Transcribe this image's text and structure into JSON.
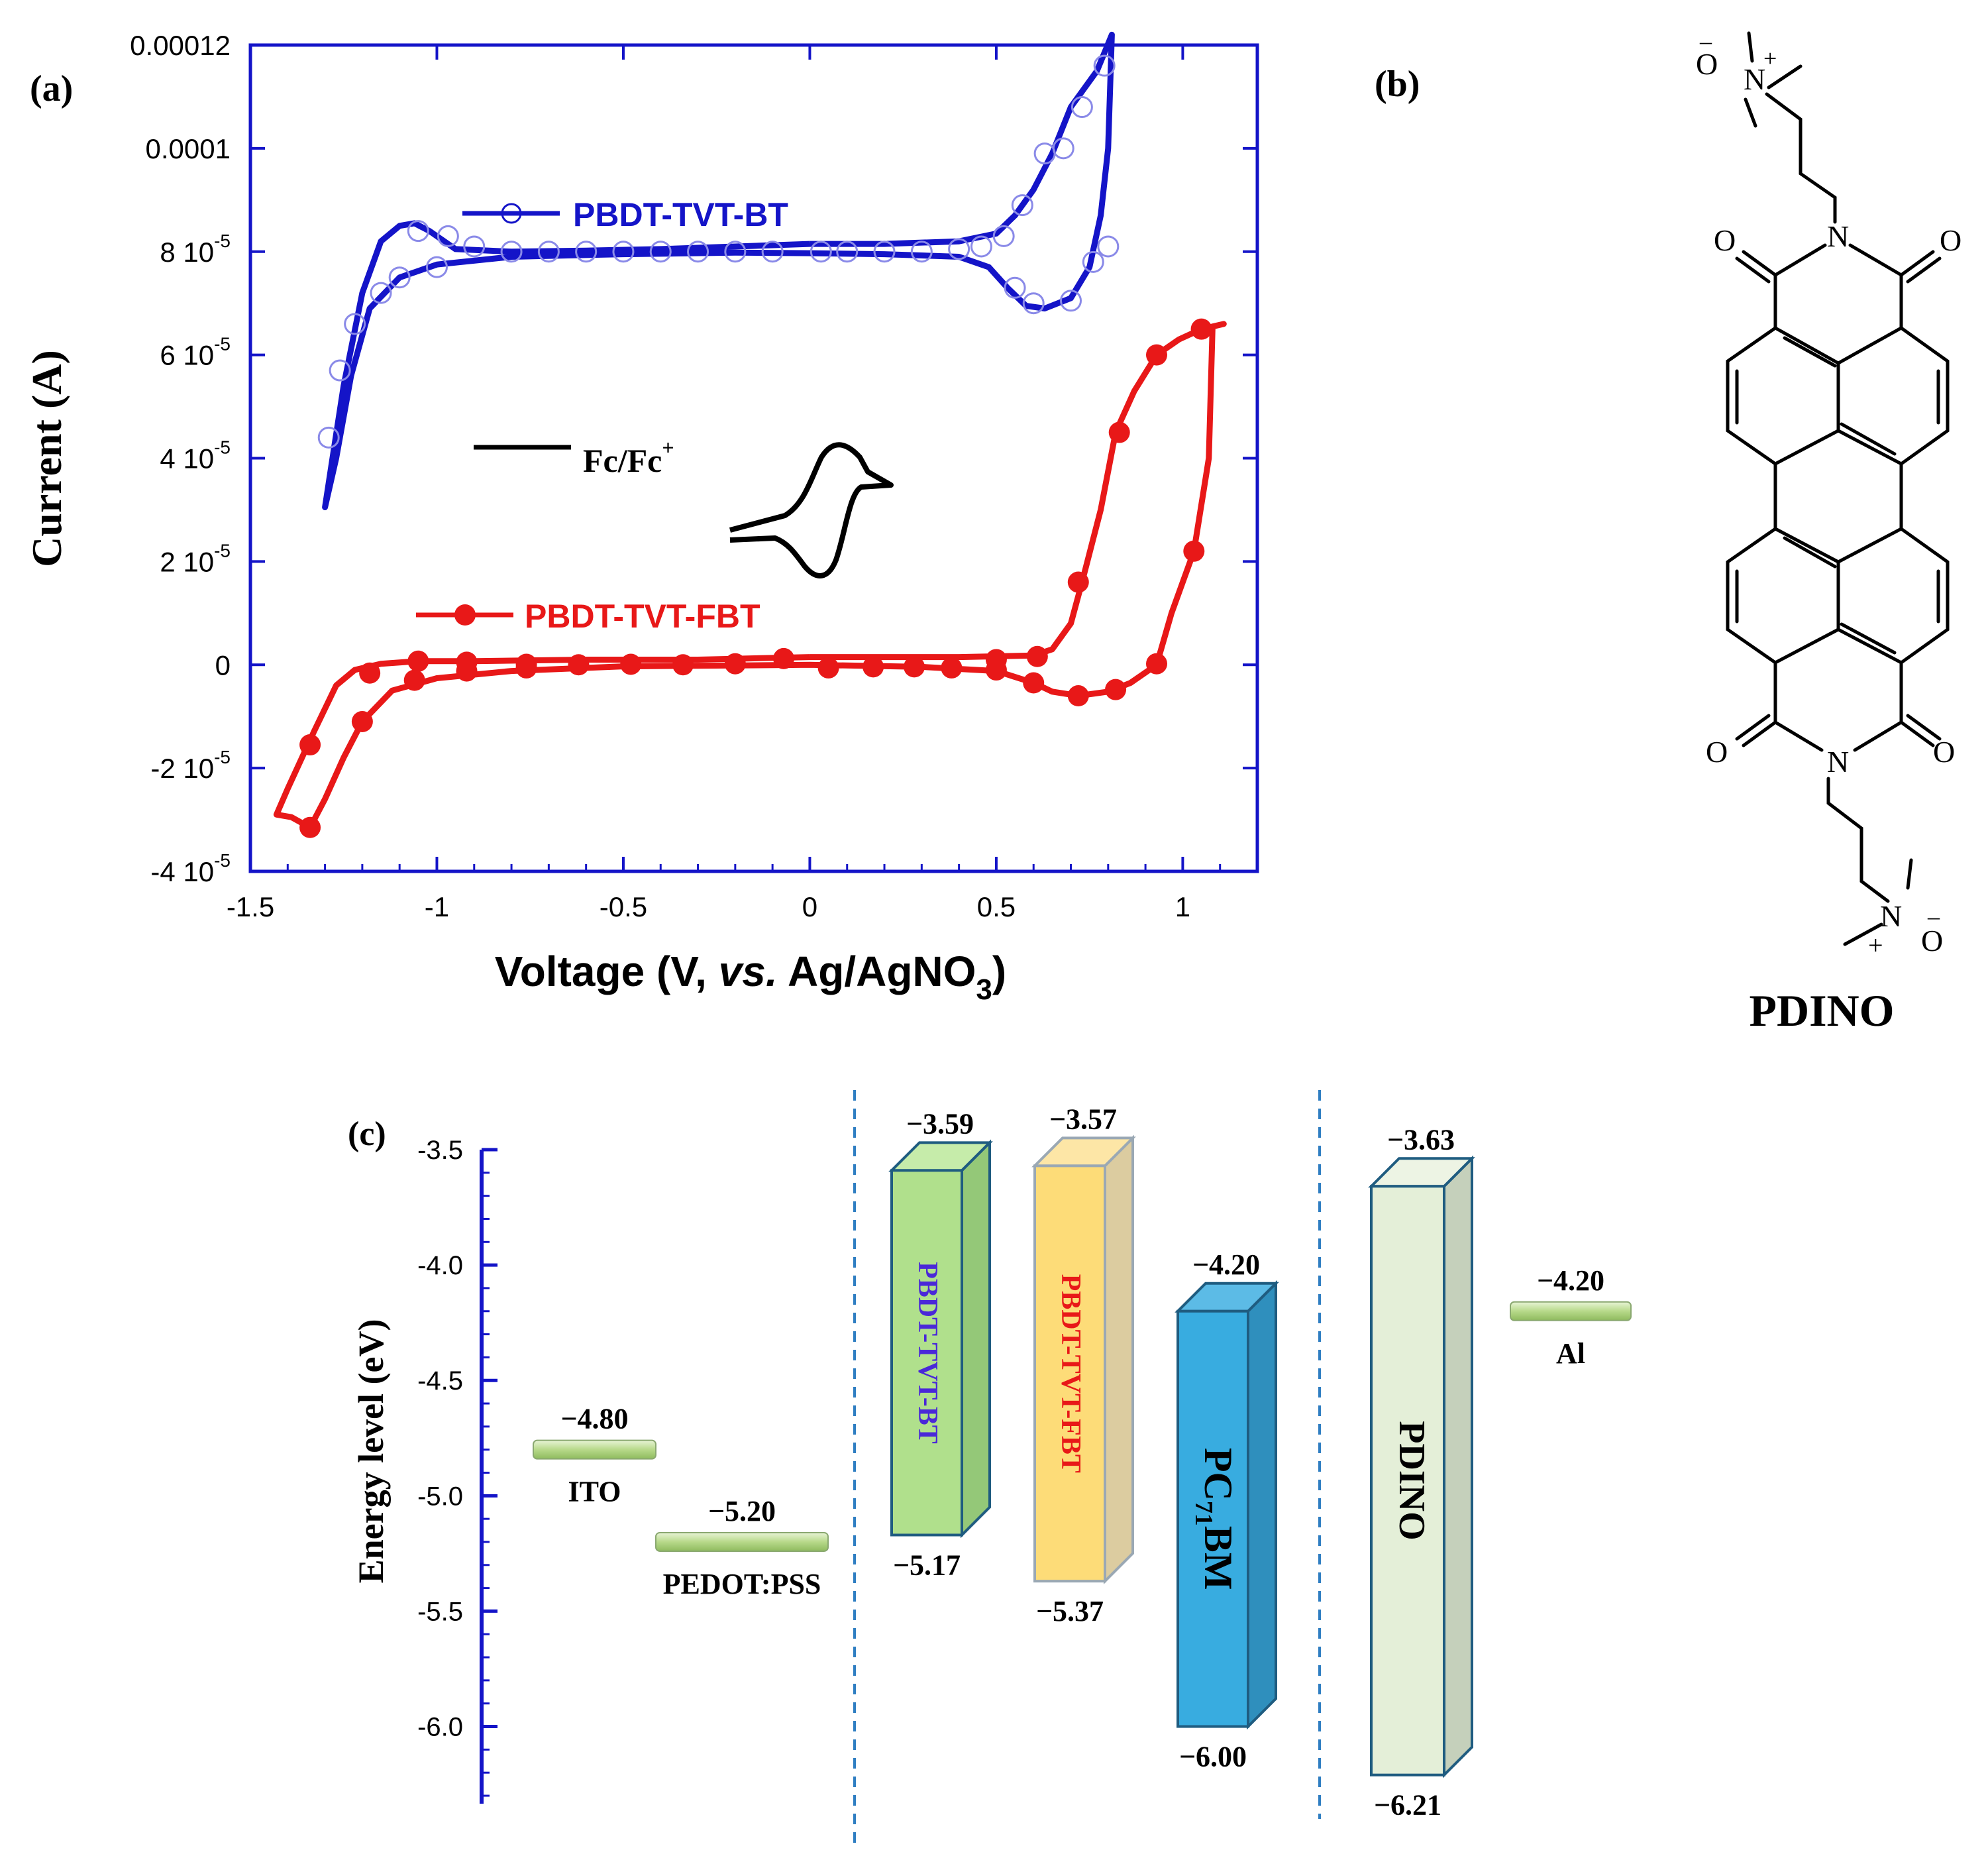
{
  "panel_labels": [
    "(a)",
    "(b)",
    "(c)"
  ],
  "chart_data": [
    {
      "type": "line",
      "xlabel_main": "Voltage (V, ",
      "xlabel_italic": "vs.",
      "xlabel_tail": " Ag/AgNO",
      "xlabel_sub": "3",
      "xlabel_close": ")",
      "ylabel": "Current (A)",
      "xlim": [
        -1.5,
        1.2
      ],
      "ylim": [
        -4e-05,
        0.00012
      ],
      "xticks": [
        {
          "v": -1.5,
          "label": "-1.5"
        },
        {
          "v": -1,
          "label": "-1"
        },
        {
          "v": -0.5,
          "label": "-0.5"
        },
        {
          "v": 0,
          "label": "0"
        },
        {
          "v": 0.5,
          "label": "0.5"
        },
        {
          "v": 1,
          "label": "1"
        }
      ],
      "yticks": [
        {
          "v": 0.00012,
          "label": "0.00012"
        },
        {
          "v": 0.0001,
          "label": "0.0001"
        },
        {
          "v": 8e-05,
          "label": "8 10",
          "exp": "-5"
        },
        {
          "v": 6e-05,
          "label": "6 10",
          "exp": "-5"
        },
        {
          "v": 4e-05,
          "label": "4 10",
          "exp": "-5"
        },
        {
          "v": 2e-05,
          "label": "2 10",
          "exp": "-5"
        },
        {
          "v": 0,
          "label": "0"
        },
        {
          "v": -2e-05,
          "label": "-2 10",
          "exp": "-5"
        },
        {
          "v": -4e-05,
          "label": "-4 10",
          "exp": "-5"
        }
      ],
      "series": [
        {
          "name": "PBDT-TVT-BT",
          "color": "#1414c8",
          "marker": "open-circle",
          "loop_upper": [
            [
              0.0,
              8.15e-05
            ],
            [
              -0.2,
              8.1e-05
            ],
            [
              -0.4,
              8.05e-05
            ],
            [
              -0.6,
              8.02e-05
            ],
            [
              -0.8,
              8e-05
            ],
            [
              -0.95,
              8.05e-05
            ],
            [
              -1.02,
              8.4e-05
            ],
            [
              -1.06,
              8.55e-05
            ],
            [
              -1.1,
              8.5e-05
            ],
            [
              -1.15,
              8.2e-05
            ],
            [
              -1.2,
              7.2e-05
            ],
            [
              -1.25,
              5.4e-05
            ],
            [
              -1.28,
              4e-05
            ],
            [
              -1.3,
              3.05e-05
            ]
          ],
          "loop_lower": [
            [
              -1.3,
              3.05e-05
            ],
            [
              -1.27,
              4e-05
            ],
            [
              -1.23,
              5.6e-05
            ],
            [
              -1.18,
              6.9e-05
            ],
            [
              -1.1,
              7.5e-05
            ],
            [
              -1.0,
              7.75e-05
            ],
            [
              -0.8,
              7.9e-05
            ],
            [
              -0.5,
              7.95e-05
            ],
            [
              -0.2,
              7.98e-05
            ],
            [
              0.0,
              7.97e-05
            ],
            [
              0.2,
              7.95e-05
            ],
            [
              0.4,
              7.9e-05
            ],
            [
              0.48,
              7.7e-05
            ],
            [
              0.53,
              7.3e-05
            ],
            [
              0.58,
              6.95e-05
            ],
            [
              0.63,
              6.9e-05
            ],
            [
              0.7,
              7.1e-05
            ],
            [
              0.75,
              7.7e-05
            ],
            [
              0.78,
              8.7e-05
            ],
            [
              0.8,
              0.0001
            ],
            [
              0.81,
              0.000122
            ]
          ],
          "loop_return": [
            [
              0.81,
              0.000122
            ],
            [
              0.77,
              0.000115
            ],
            [
              0.7,
              0.000108
            ],
            [
              0.65,
              9.9e-05
            ],
            [
              0.6,
              9.2e-05
            ],
            [
              0.55,
              8.7e-05
            ],
            [
              0.5,
              8.35e-05
            ],
            [
              0.4,
              8.2e-05
            ],
            [
              0.2,
              8.15e-05
            ],
            [
              0.0,
              8.15e-05
            ]
          ],
          "markers": [
            [
              -1.05,
              8.4e-05
            ],
            [
              -0.97,
              8.3e-05
            ],
            [
              -0.9,
              8.1e-05
            ],
            [
              -0.8,
              8e-05
            ],
            [
              -0.7,
              8e-05
            ],
            [
              -0.6,
              8e-05
            ],
            [
              -0.5,
              8e-05
            ],
            [
              -0.4,
              8e-05
            ],
            [
              -0.3,
              8e-05
            ],
            [
              -0.2,
              8e-05
            ],
            [
              -0.1,
              8e-05
            ],
            [
              0.03,
              8e-05
            ],
            [
              0.1,
              8e-05
            ],
            [
              0.2,
              8e-05
            ],
            [
              0.3,
              8e-05
            ],
            [
              0.4,
              8.05e-05
            ],
            [
              0.46,
              8.1e-05
            ],
            [
              0.52,
              8.3e-05
            ],
            [
              0.57,
              8.9e-05
            ],
            [
              0.63,
              9.9e-05
            ],
            [
              0.68,
              0.0001
            ],
            [
              0.73,
              0.000108
            ],
            [
              0.79,
              0.000116
            ],
            [
              -1.26,
              5.7e-05
            ],
            [
              -1.29,
              4.4e-05
            ],
            [
              -1.22,
              6.6e-05
            ],
            [
              -1.15,
              7.2e-05
            ],
            [
              -1.1,
              7.5e-05
            ],
            [
              -1.0,
              7.7e-05
            ],
            [
              0.55,
              7.3e-05
            ],
            [
              0.6,
              7e-05
            ],
            [
              0.7,
              7.05e-05
            ],
            [
              0.76,
              7.8e-05
            ],
            [
              0.8,
              8.1e-05
            ]
          ]
        },
        {
          "name": "PBDT-TVT-FBT",
          "color": "#e81818",
          "marker": "filled-circle",
          "loop_upper": [
            [
              0.0,
              1.5e-06
            ],
            [
              -0.3,
              1e-06
            ],
            [
              -0.6,
              1e-06
            ],
            [
              -0.9,
              7e-07
            ],
            [
              -1.05,
              7e-07
            ],
            [
              -1.15,
              2e-07
            ],
            [
              -1.22,
              -1e-06
            ],
            [
              -1.27,
              -4e-06
            ],
            [
              -1.33,
              -1.3e-05
            ],
            [
              -1.4,
              -2.4e-05
            ],
            [
              -1.43,
              -2.9e-05
            ],
            [
              -1.39,
              -2.95e-05
            ],
            [
              -1.34,
              -3.15e-05
            ]
          ],
          "loop_lower": [
            [
              -1.34,
              -3.15e-05
            ],
            [
              -1.3,
              -2.6e-05
            ],
            [
              -1.25,
              -1.8e-05
            ],
            [
              -1.2,
              -1.1e-05
            ],
            [
              -1.12,
              -5e-06
            ],
            [
              -1.0,
              -2.6e-06
            ],
            [
              -0.8,
              -1.2e-06
            ],
            [
              -0.5,
              -3e-07
            ],
            [
              0.0,
              0.0
            ],
            [
              0.3,
              -4e-07
            ],
            [
              0.5,
              -1.2e-06
            ],
            [
              0.6,
              -3.5e-06
            ],
            [
              0.65,
              -5.2e-06
            ],
            [
              0.72,
              -6e-06
            ],
            [
              0.8,
              -5.2e-06
            ],
            [
              0.86,
              -3.5e-06
            ],
            [
              0.93,
              0.0
            ],
            [
              0.97,
              1e-05
            ],
            [
              1.03,
              2.2e-05
            ],
            [
              1.07,
              4e-05
            ],
            [
              1.08,
              6.55e-05
            ],
            [
              1.11,
              6.6e-05
            ]
          ],
          "loop_return": [
            [
              1.11,
              6.6e-05
            ],
            [
              1.05,
              6.5e-05
            ],
            [
              0.99,
              6.3e-05
            ],
            [
              0.93,
              6e-05
            ],
            [
              0.87,
              5.3e-05
            ],
            [
              0.82,
              4.5e-05
            ],
            [
              0.78,
              3e-05
            ],
            [
              0.73,
              1.6e-05
            ],
            [
              0.7,
              8e-06
            ],
            [
              0.65,
              3e-06
            ],
            [
              0.6,
              1.8e-06
            ],
            [
              0.4,
              1.5e-06
            ],
            [
              0.2,
              1.5e-06
            ],
            [
              0.0,
              1.5e-06
            ]
          ],
          "markers": [
            [
              -1.34,
              -1.55e-05
            ],
            [
              -1.34,
              -3.15e-05
            ],
            [
              -1.2,
              -1.1e-05
            ],
            [
              -1.18,
              -1.6e-06
            ],
            [
              -1.06,
              -3e-06
            ],
            [
              -1.05,
              7e-07
            ],
            [
              -0.92,
              -1.2e-06
            ],
            [
              -0.92,
              5e-07
            ],
            [
              -0.76,
              -6e-07
            ],
            [
              -0.76,
              1e-07
            ],
            [
              -0.62,
              0.0
            ],
            [
              -0.48,
              1e-07
            ],
            [
              -0.34,
              0.0
            ],
            [
              -0.2,
              2e-07
            ],
            [
              -0.07,
              1.2e-06
            ],
            [
              0.05,
              -6e-07
            ],
            [
              0.17,
              -4e-07
            ],
            [
              0.28,
              -4e-07
            ],
            [
              0.38,
              -6e-07
            ],
            [
              0.5,
              -1e-06
            ],
            [
              0.5,
              1e-06
            ],
            [
              0.6,
              -3.5e-06
            ],
            [
              0.61,
              1.6e-06
            ],
            [
              0.72,
              -6e-06
            ],
            [
              0.72,
              1.6e-05
            ],
            [
              0.82,
              -4.8e-06
            ],
            [
              0.83,
              4.5e-05
            ],
            [
              0.93,
              2e-07
            ],
            [
              0.93,
              6e-05
            ],
            [
              1.03,
              2.2e-05
            ],
            [
              1.05,
              6.5e-05
            ]
          ]
        },
        {
          "name": "Fc/Fc",
          "name_sup": "+",
          "color": "#000000",
          "marker": "none"
        }
      ]
    },
    {
      "type": "bar",
      "subtype": "energy-level-diagram",
      "ylabel": "Energy level (eV)",
      "ylim": [
        -6.3,
        -3.5
      ],
      "yticks": [
        {
          "v": -3.5,
          "label": "-3.5"
        },
        {
          "v": -4.0,
          "label": "-4.0"
        },
        {
          "v": -4.5,
          "label": "-4.5"
        },
        {
          "v": -5.0,
          "label": "-5.0"
        },
        {
          "v": -5.5,
          "label": "-5.5"
        },
        {
          "v": -6.0,
          "label": "-6.0"
        }
      ],
      "levels": [
        {
          "name": "ITO",
          "value": -4.8,
          "value_label": "−4.80"
        },
        {
          "name": "PEDOT:PSS",
          "value": -5.2,
          "value_label": "−5.20"
        },
        {
          "name": "Al",
          "value": -4.2,
          "value_label": "−4.20"
        }
      ],
      "blocks": [
        {
          "name": "PBDT-TVT-BT",
          "lumo": -3.59,
          "homo": -5.17,
          "lumo_label": "−3.59",
          "homo_label": "−5.17",
          "front": "#b0e08c",
          "side": "#94c878",
          "top": "#c6ecaa",
          "stroke": "#1f5c80",
          "text": "#4a28d8"
        },
        {
          "name": "PBDT-TVT-FBT",
          "lumo": -3.57,
          "homo": -5.37,
          "lumo_label": "−3.57",
          "homo_label": "−5.37",
          "front": "#fddc78",
          "side": "#dccca0",
          "top": "#fde6a6",
          "stroke": "#9aa8b4",
          "text": "#e81818"
        },
        {
          "name_main": "PC",
          "name_sub": "71",
          "name_tail": "BM",
          "lumo": -4.2,
          "homo": -6.0,
          "lumo_label": "−4.20",
          "homo_label": "−6.00",
          "front": "#38ace0",
          "side": "#2f8fbd",
          "top": "#5cbbe6",
          "stroke": "#1f5c80",
          "text": "#000000"
        },
        {
          "name": "PDINO",
          "lumo": -3.63,
          "homo": -6.21,
          "lumo_label": "−3.63",
          "homo_label": "−6.21",
          "front": "#e4efd8",
          "side": "#c5d0bb",
          "top": "#edf4e4",
          "stroke": "#1f5c80",
          "text": "#000000"
        }
      ]
    }
  ],
  "molecule": {
    "name": "PDINO",
    "atoms": {
      "O": "O",
      "N": "N",
      "plus": "+",
      "minus": "–"
    }
  }
}
